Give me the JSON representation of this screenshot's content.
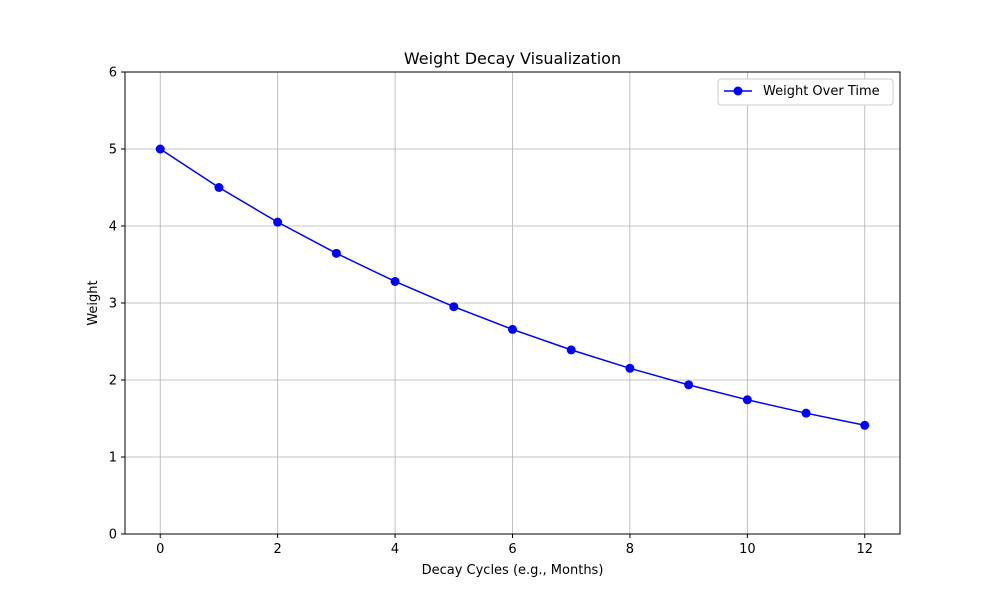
{
  "chart_data": {
    "type": "line",
    "title": "Weight Decay Visualization",
    "xlabel": "Decay Cycles (e.g., Months)",
    "ylabel": "Weight",
    "xlim": [
      -0.6,
      12.6
    ],
    "ylim": [
      0,
      6
    ],
    "xticks": [
      0,
      2,
      4,
      6,
      8,
      10,
      12
    ],
    "yticks": [
      0,
      1,
      2,
      3,
      4,
      5,
      6
    ],
    "grid": true,
    "legend_position": "top-right",
    "series": [
      {
        "name": "Weight Over Time",
        "color": "#0000ff",
        "marker": "circle",
        "x": [
          0,
          1,
          2,
          3,
          4,
          5,
          6,
          7,
          8,
          9,
          10,
          11,
          12
        ],
        "y": [
          5.0,
          4.5,
          4.05,
          3.645,
          3.28,
          2.952,
          2.657,
          2.391,
          2.152,
          1.937,
          1.743,
          1.569,
          1.412
        ]
      }
    ]
  }
}
